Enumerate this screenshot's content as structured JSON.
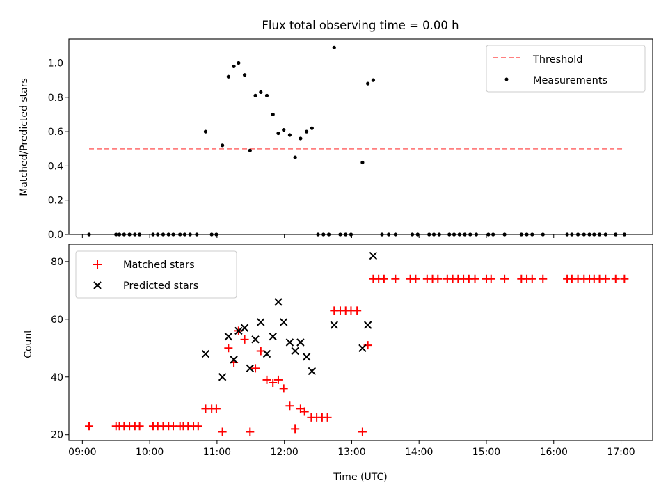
{
  "title": "Flux total observing time = 0.00 h",
  "colors": {
    "threshold": "#ff7f7f",
    "measurement": "#000000",
    "matched": "#ff0000",
    "predicted": "#000000",
    "axis": "#000000"
  },
  "chart_data": [
    {
      "type": "scatter",
      "panel": "top",
      "ylabel": "Matched/Predicted stars",
      "xlabel": "",
      "xlim": [
        8.8,
        17.47
      ],
      "ylim": [
        0,
        1.14
      ],
      "yticks": [
        0.0,
        0.2,
        0.4,
        0.6,
        0.8,
        1.0
      ],
      "ytick_labels": [
        "0.0",
        "0.2",
        "0.4",
        "0.6",
        "0.8",
        "1.0"
      ],
      "legend": {
        "placement": "top-right",
        "entries": [
          "Threshold",
          "Measurements"
        ]
      },
      "threshold": {
        "name": "Threshold",
        "value": 0.5,
        "x_range": [
          9.1,
          17.02
        ]
      },
      "series": [
        {
          "name": "Measurements",
          "points": [
            [
              9.1,
              0
            ],
            [
              9.5,
              0
            ],
            [
              9.55,
              0
            ],
            [
              9.62,
              0
            ],
            [
              9.7,
              0
            ],
            [
              9.78,
              0
            ],
            [
              9.85,
              0
            ],
            [
              10.05,
              0
            ],
            [
              10.12,
              0
            ],
            [
              10.2,
              0
            ],
            [
              10.28,
              0
            ],
            [
              10.35,
              0
            ],
            [
              10.45,
              0
            ],
            [
              10.52,
              0
            ],
            [
              10.6,
              0
            ],
            [
              10.7,
              0
            ],
            [
              10.83,
              0.6
            ],
            [
              10.92,
              0
            ],
            [
              10.99,
              0
            ],
            [
              11.08,
              0.52
            ],
            [
              11.17,
              0.92
            ],
            [
              11.25,
              0.98
            ],
            [
              11.32,
              1.0
            ],
            [
              11.41,
              0.93
            ],
            [
              11.49,
              0.49
            ],
            [
              11.57,
              0.81
            ],
            [
              11.65,
              0.83
            ],
            [
              11.74,
              0.81
            ],
            [
              11.83,
              0.7
            ],
            [
              11.91,
              0.59
            ],
            [
              11.99,
              0.61
            ],
            [
              12.08,
              0.58
            ],
            [
              12.16,
              0.45
            ],
            [
              12.24,
              0.56
            ],
            [
              12.33,
              0.6
            ],
            [
              12.41,
              0.62
            ],
            [
              12.5,
              0
            ],
            [
              12.58,
              0
            ],
            [
              12.66,
              0
            ],
            [
              12.74,
              1.09
            ],
            [
              12.83,
              0
            ],
            [
              12.91,
              0
            ],
            [
              12.99,
              0
            ],
            [
              13.16,
              0.42
            ],
            [
              13.24,
              0.88
            ],
            [
              13.32,
              0.9
            ],
            [
              13.45,
              0
            ],
            [
              13.55,
              0
            ],
            [
              13.65,
              0
            ],
            [
              13.9,
              0
            ],
            [
              13.98,
              0
            ],
            [
              14.15,
              0
            ],
            [
              14.22,
              0
            ],
            [
              14.3,
              0
            ],
            [
              14.45,
              0
            ],
            [
              14.52,
              0
            ],
            [
              14.6,
              0
            ],
            [
              14.68,
              0
            ],
            [
              14.76,
              0
            ],
            [
              14.85,
              0
            ],
            [
              15.03,
              0
            ],
            [
              15.1,
              0
            ],
            [
              15.27,
              0
            ],
            [
              15.52,
              0
            ],
            [
              15.6,
              0
            ],
            [
              15.68,
              0
            ],
            [
              15.84,
              0
            ],
            [
              16.2,
              0
            ],
            [
              16.27,
              0
            ],
            [
              16.36,
              0
            ],
            [
              16.45,
              0
            ],
            [
              16.53,
              0
            ],
            [
              16.6,
              0
            ],
            [
              16.68,
              0
            ],
            [
              16.77,
              0
            ],
            [
              16.92,
              0
            ],
            [
              17.05,
              0
            ]
          ]
        }
      ]
    },
    {
      "type": "scatter",
      "panel": "bottom",
      "ylabel": "Count",
      "xlabel": "Time (UTC)",
      "xlim": [
        8.8,
        17.47
      ],
      "ylim": [
        18,
        86
      ],
      "xticks": [
        9,
        10,
        11,
        12,
        13,
        14,
        15,
        16,
        17
      ],
      "xtick_labels": [
        "09:00",
        "10:00",
        "11:00",
        "12:00",
        "13:00",
        "14:00",
        "15:00",
        "16:00",
        "17:00"
      ],
      "yticks": [
        20,
        40,
        60,
        80
      ],
      "ytick_labels": [
        "20",
        "40",
        "60",
        "80"
      ],
      "legend": {
        "placement": "top-left",
        "entries": [
          "Matched stars",
          "Predicted stars"
        ]
      },
      "series": [
        {
          "name": "Matched stars",
          "marker": "plus",
          "points": [
            [
              9.1,
              23
            ],
            [
              9.5,
              23
            ],
            [
              9.55,
              23
            ],
            [
              9.62,
              23
            ],
            [
              9.7,
              23
            ],
            [
              9.78,
              23
            ],
            [
              9.85,
              23
            ],
            [
              10.05,
              23
            ],
            [
              10.12,
              23
            ],
            [
              10.2,
              23
            ],
            [
              10.28,
              23
            ],
            [
              10.35,
              23
            ],
            [
              10.45,
              23
            ],
            [
              10.5,
              23
            ],
            [
              10.57,
              23
            ],
            [
              10.65,
              23
            ],
            [
              10.72,
              23
            ],
            [
              10.83,
              29
            ],
            [
              10.92,
              29
            ],
            [
              10.99,
              29
            ],
            [
              11.08,
              21
            ],
            [
              11.17,
              50
            ],
            [
              11.25,
              45
            ],
            [
              11.32,
              56
            ],
            [
              11.41,
              53
            ],
            [
              11.49,
              21
            ],
            [
              11.57,
              43
            ],
            [
              11.65,
              49
            ],
            [
              11.74,
              39
            ],
            [
              11.83,
              38
            ],
            [
              11.91,
              39
            ],
            [
              11.99,
              36
            ],
            [
              12.08,
              30
            ],
            [
              12.16,
              22
            ],
            [
              12.24,
              29
            ],
            [
              12.3,
              28
            ],
            [
              12.4,
              26
            ],
            [
              12.48,
              26
            ],
            [
              12.56,
              26
            ],
            [
              12.64,
              26
            ],
            [
              12.74,
              63
            ],
            [
              12.83,
              63
            ],
            [
              12.91,
              63
            ],
            [
              12.99,
              63
            ],
            [
              13.08,
              63
            ],
            [
              13.16,
              21
            ],
            [
              13.24,
              51
            ],
            [
              13.32,
              74
            ],
            [
              13.4,
              74
            ],
            [
              13.48,
              74
            ],
            [
              13.65,
              74
            ],
            [
              13.87,
              74
            ],
            [
              13.95,
              74
            ],
            [
              14.12,
              74
            ],
            [
              14.2,
              74
            ],
            [
              14.28,
              74
            ],
            [
              14.42,
              74
            ],
            [
              14.5,
              74
            ],
            [
              14.58,
              74
            ],
            [
              14.66,
              74
            ],
            [
              14.74,
              74
            ],
            [
              14.83,
              74
            ],
            [
              15.0,
              74
            ],
            [
              15.07,
              74
            ],
            [
              15.27,
              74
            ],
            [
              15.52,
              74
            ],
            [
              15.6,
              74
            ],
            [
              15.68,
              74
            ],
            [
              15.84,
              74
            ],
            [
              16.2,
              74
            ],
            [
              16.27,
              74
            ],
            [
              16.36,
              74
            ],
            [
              16.45,
              74
            ],
            [
              16.53,
              74
            ],
            [
              16.6,
              74
            ],
            [
              16.68,
              74
            ],
            [
              16.77,
              74
            ],
            [
              16.92,
              74
            ],
            [
              17.05,
              74
            ]
          ]
        },
        {
          "name": "Predicted stars",
          "marker": "x",
          "points": [
            [
              10.83,
              48
            ],
            [
              11.08,
              40
            ],
            [
              11.17,
              54
            ],
            [
              11.25,
              46
            ],
            [
              11.32,
              56
            ],
            [
              11.41,
              57
            ],
            [
              11.49,
              43
            ],
            [
              11.57,
              53
            ],
            [
              11.65,
              59
            ],
            [
              11.74,
              48
            ],
            [
              11.83,
              54
            ],
            [
              11.91,
              66
            ],
            [
              11.99,
              59
            ],
            [
              12.08,
              52
            ],
            [
              12.16,
              49
            ],
            [
              12.24,
              52
            ],
            [
              12.33,
              47
            ],
            [
              12.41,
              42
            ],
            [
              12.74,
              58
            ],
            [
              13.16,
              50
            ],
            [
              13.24,
              58
            ],
            [
              13.32,
              82
            ]
          ]
        }
      ]
    }
  ]
}
